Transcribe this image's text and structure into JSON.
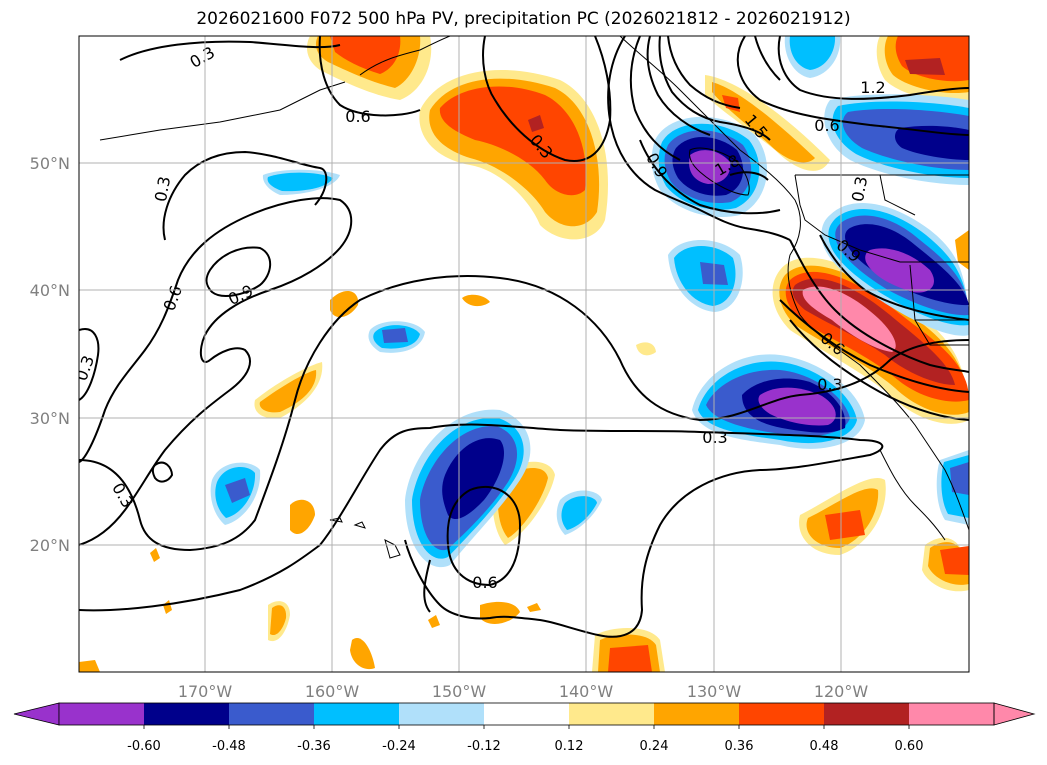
{
  "chart_data": {
    "type": "map",
    "title": "2026021600 F072 500 hPa PV, precipitation PC (2026021812 - 2026021912)",
    "lon_range": [
      -180,
      -110
    ],
    "lat_range": [
      10,
      60
    ],
    "lon_ticks": [
      {
        "value": -170,
        "label": "170°W"
      },
      {
        "value": -160,
        "label": "160°W"
      },
      {
        "value": -150,
        "label": "150°W"
      },
      {
        "value": -140,
        "label": "140°W"
      },
      {
        "value": -130,
        "label": "130°W"
      },
      {
        "value": -120,
        "label": "120°W"
      }
    ],
    "lat_ticks": [
      {
        "value": 50,
        "label": "50°N"
      },
      {
        "value": 40,
        "label": "40°N"
      },
      {
        "value": 30,
        "label": "30°N"
      },
      {
        "value": 20,
        "label": "20°N"
      }
    ],
    "colorbar": {
      "colors": [
        "#9932CC",
        "#00008B",
        "#3A5BCD",
        "#00BFFF",
        "#B0E0FA",
        "#FFFFFF",
        "#FFE98C",
        "#FFA500",
        "#FF4500",
        "#B22222",
        "#FF88AA"
      ],
      "ticks": [
        "-0.60",
        "-0.48",
        "-0.36",
        "-0.24",
        "-0.12",
        "0.12",
        "0.24",
        "0.36",
        "0.48",
        "0.60"
      ],
      "extend": "both"
    },
    "contour_levels": [
      0.3,
      0.6,
      0.9,
      1.2,
      1.5,
      1.8
    ],
    "contour_labels": [
      {
        "text": "0.3",
        "lon": -178,
        "lat": 34
      },
      {
        "text": "0.3",
        "lon": -173,
        "lat": 46
      },
      {
        "text": "0.3",
        "lon": -176,
        "lat": 23
      },
      {
        "text": "0.3",
        "lon": -170,
        "lat": 58
      },
      {
        "text": "0.6",
        "lon": -158,
        "lat": 54
      },
      {
        "text": "0.6",
        "lon": -150,
        "lat": 17
      },
      {
        "text": "0.6",
        "lon": -120,
        "lat": 52
      },
      {
        "text": "0.6",
        "lon": -173,
        "lat": 38
      },
      {
        "text": "0.6",
        "lon": -124,
        "lat": 35
      },
      {
        "text": "0.9",
        "lon": -168,
        "lat": 40
      },
      {
        "text": "0.9",
        "lon": -133,
        "lat": 48
      },
      {
        "text": "0.9",
        "lon": -123,
        "lat": 43
      },
      {
        "text": "1.2",
        "lon": -117,
        "lat": 56
      },
      {
        "text": "1.5",
        "lon": -129,
        "lat": 52
      },
      {
        "text": "1.8",
        "lon": -129,
        "lat": 50
      },
      {
        "text": "0.3",
        "lon": -148,
        "lat": 51
      },
      {
        "text": "0.3",
        "lon": -132,
        "lat": 28.5
      },
      {
        "text": "0.3",
        "lon": -122,
        "lat": 32
      },
      {
        "text": "0.3",
        "lon": -118,
        "lat": 47
      }
    ],
    "precip_blobs": [
      {
        "sign": "positive",
        "lon": -150,
        "lat": 53,
        "max": 0.5
      },
      {
        "sign": "positive",
        "lon": -120,
        "lat": 37,
        "max": 0.7
      },
      {
        "sign": "negative",
        "lon": -131,
        "lat": 50,
        "max": 0.65
      },
      {
        "sign": "negative",
        "lon": -122,
        "lat": 31,
        "max": 0.65
      },
      {
        "sign": "negative",
        "lon": -149,
        "lat": 25,
        "max": 0.55
      },
      {
        "sign": "negative",
        "lon": -118,
        "lat": 42,
        "max": 0.65
      }
    ]
  }
}
